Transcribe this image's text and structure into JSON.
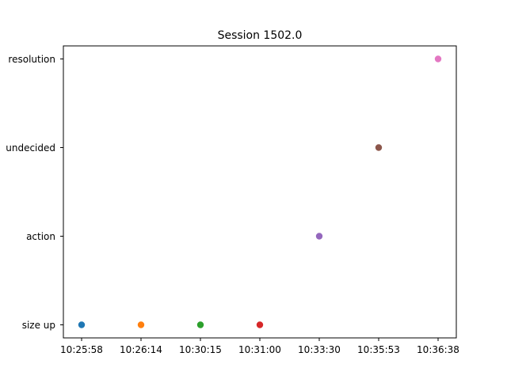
{
  "chart_data": {
    "type": "scatter",
    "title": "Session 1502.0",
    "xlabel": "",
    "ylabel": "",
    "grid": false,
    "x_categories": [
      "10:25:58",
      "10:26:14",
      "10:30:15",
      "10:31:00",
      "10:33:30",
      "10:35:53",
      "10:36:38"
    ],
    "y_categories": [
      "size up",
      "action",
      "undecided",
      "resolution"
    ],
    "points": [
      {
        "x": "10:25:58",
        "y": "size up",
        "color": "#1f77b4"
      },
      {
        "x": "10:26:14",
        "y": "size up",
        "color": "#ff7f0e"
      },
      {
        "x": "10:30:15",
        "y": "size up",
        "color": "#2ca02c"
      },
      {
        "x": "10:31:00",
        "y": "size up",
        "color": "#d62728"
      },
      {
        "x": "10:33:30",
        "y": "action",
        "color": "#9467bd"
      },
      {
        "x": "10:35:53",
        "y": "undecided",
        "color": "#8c564b"
      },
      {
        "x": "10:36:38",
        "y": "resolution",
        "color": "#e377c2"
      }
    ]
  }
}
